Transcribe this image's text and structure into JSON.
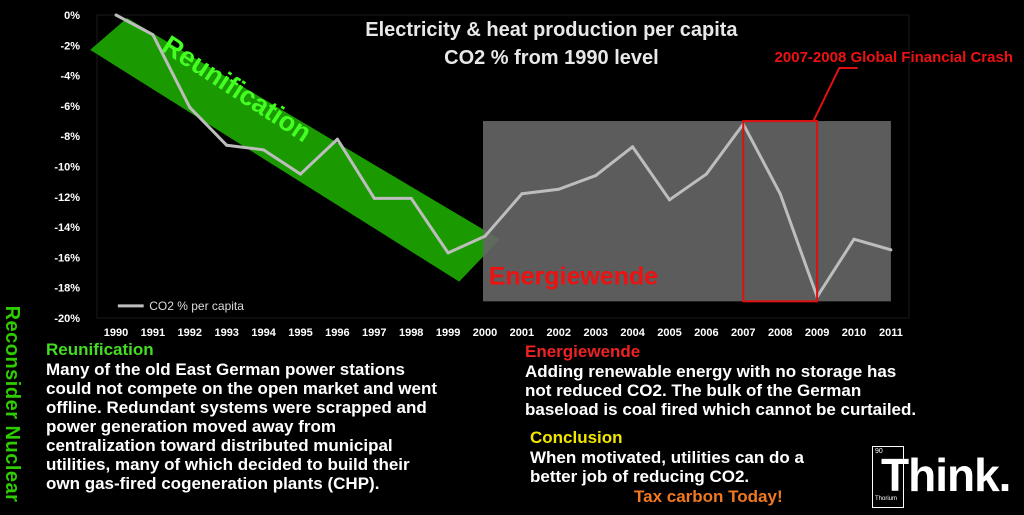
{
  "chart_data": {
    "type": "line",
    "title_line1": "Electricity & heat production  per capita",
    "title_line2": "CO2 % from 1990 level",
    "categories": [
      "1990",
      "1991",
      "1992",
      "1993",
      "1994",
      "1995",
      "1996",
      "1997",
      "1998",
      "1999",
      "2000",
      "2001",
      "2002",
      "2003",
      "2004",
      "2005",
      "2006",
      "2007",
      "2008",
      "2009",
      "2010",
      "2011"
    ],
    "series": [
      {
        "name": "CO2 % per capita",
        "values": [
          0,
          -1.3,
          -6.1,
          -8.6,
          -8.9,
          -10.5,
          -8.2,
          -12.1,
          -12.1,
          -15.7,
          -14.6,
          -11.8,
          -11.5,
          -10.6,
          -8.7,
          -12.2,
          -10.5,
          -7.2,
          -11.8,
          -18.6,
          -14.8,
          -15.5
        ]
      }
    ],
    "y_ticks": [
      "0%",
      "-2%",
      "-4%",
      "-6%",
      "-8%",
      "-10%",
      "-12%",
      "-14%",
      "-16%",
      "-18%",
      "-20%"
    ],
    "ylim": [
      -20,
      0
    ],
    "legend_label": "CO2 % per capita",
    "annotations": {
      "reunification": "Reunification",
      "energiewende": "Energiewende",
      "crash": "2007-2008 Global Financial Crash"
    },
    "colors": {
      "line": "#bdbdbd",
      "reunification": "#1a9a00",
      "energiewende": "#666666",
      "crash": "#dd1111"
    }
  },
  "side_label": "Reconsider Nuclear",
  "reunification_block": {
    "heading": "Reunification",
    "lines": [
      "Many of the old East German power stations",
      "could not compete on the open market and went",
      "offline. Redundant systems were scrapped and",
      "power generation moved away from",
      "centralization toward distributed municipal",
      "utilities, many of which decided to build their",
      "own gas-fired cogeneration plants (CHP)."
    ]
  },
  "energiewende_block": {
    "heading": "Energiewende",
    "lines": [
      "Adding renewable energy with no storage has",
      "not reduced CO2. The bulk of the German",
      "baseload is coal fired which cannot be curtailed."
    ]
  },
  "conclusion_block": {
    "heading": "Conclusion",
    "lines": [
      "When motivated, utilities can do a",
      "better job of reducing CO2."
    ]
  },
  "tax_line": "Tax carbon Today!",
  "logo": {
    "number": "90",
    "element": "Thorium",
    "word": "Think."
  }
}
